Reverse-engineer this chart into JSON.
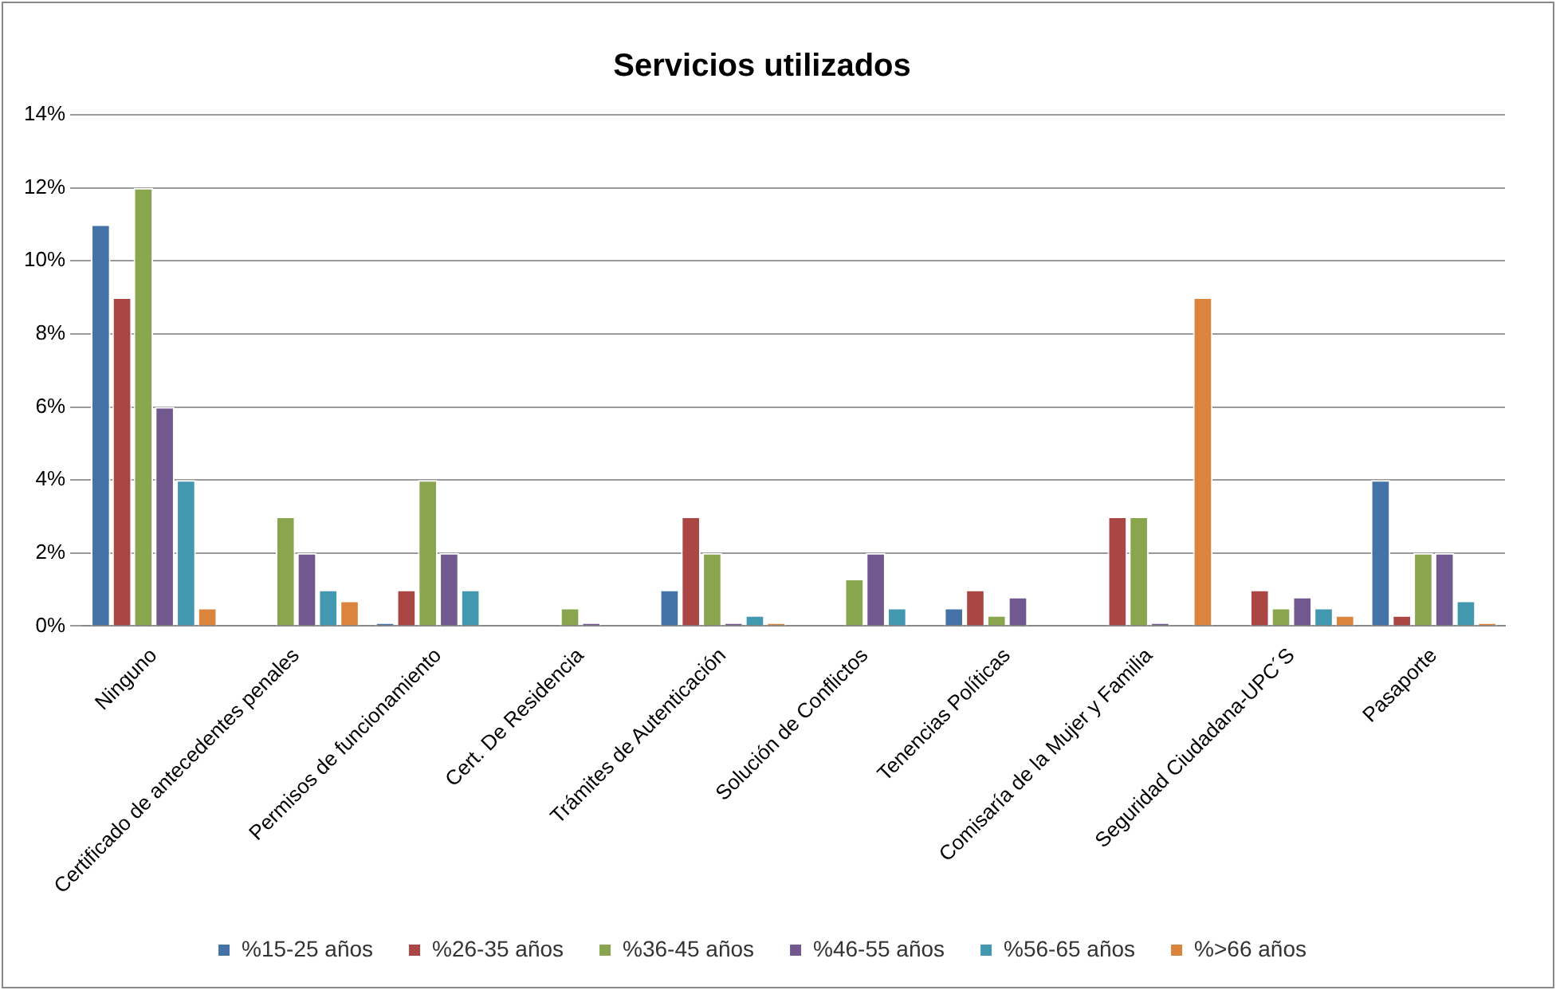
{
  "chart_data": {
    "type": "bar",
    "title": "Servicios utilizados",
    "categories": [
      "Ninguno",
      "Certificado de antecedentes penales",
      "Permisos de funcionamiento",
      "Cert. De Residencia",
      "Trámites de Autenticación",
      "Solución de Conflictos",
      "Tenencias Políticas",
      "Comisaría de la Mujer y Familia",
      "Seguridad Ciudadana-UPC´S",
      "Pasaporte"
    ],
    "series": [
      {
        "name": "%15-25 años",
        "color": "#4572a7",
        "values": [
          11,
          0,
          0.1,
          0,
          1,
          0,
          0.5,
          0,
          0,
          4
        ]
      },
      {
        "name": "%26-35 años",
        "color": "#aa4643",
        "values": [
          9,
          0,
          1,
          0,
          3,
          0,
          1,
          3,
          1,
          0.3
        ]
      },
      {
        "name": "%36-45 años",
        "color": "#89a54e",
        "values": [
          12,
          3,
          4,
          0.5,
          2,
          1.3,
          0.3,
          3,
          0.5,
          2
        ]
      },
      {
        "name": "%46-55 años",
        "color": "#71588f",
        "values": [
          6,
          2,
          2,
          0.1,
          0.1,
          2,
          0.8,
          0.1,
          0.8,
          2
        ]
      },
      {
        "name": "%56-65 años",
        "color": "#4198af",
        "values": [
          4,
          1,
          1,
          0,
          0.3,
          0.5,
          0,
          0,
          0.5,
          0.7
        ]
      },
      {
        "name": "%>66 años",
        "color": "#db843d",
        "values": [
          0.5,
          0.7,
          0,
          0,
          0.1,
          0,
          0,
          9,
          0.3,
          0.1
        ]
      }
    ],
    "ylim": [
      0,
      14
    ],
    "yticks": [
      {
        "value": 0,
        "label": "0%"
      },
      {
        "value": 2,
        "label": "2%"
      },
      {
        "value": 4,
        "label": "4%"
      },
      {
        "value": 6,
        "label": "6%"
      },
      {
        "value": 8,
        "label": "8%"
      },
      {
        "value": 10,
        "label": "10%"
      },
      {
        "value": 12,
        "label": "12%"
      },
      {
        "value": 14,
        "label": "14%"
      }
    ],
    "grid": "y",
    "legend": "bottom"
  }
}
